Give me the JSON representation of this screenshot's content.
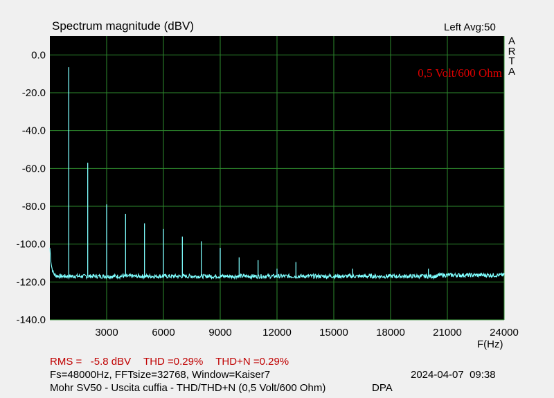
{
  "header": {
    "title": "Spectrum magnitude (dBV)",
    "channel": "Left  Avg:50",
    "vertical_brand": [
      "A",
      "R",
      "T",
      "A"
    ]
  },
  "colors": {
    "plot_background": "#000000",
    "grid": "#2e8b2e",
    "trace": "#7fffff",
    "annotation": "#e00000",
    "stats_text": "#c00000"
  },
  "chart_data": {
    "type": "line",
    "annotation": "0,5 Volt/600 Ohm",
    "xlabel": "F(Hz)",
    "xlim": [
      0,
      24000
    ],
    "ylim": [
      -140,
      10
    ],
    "x_ticks": [
      3000,
      6000,
      9000,
      12000,
      15000,
      18000,
      21000,
      24000
    ],
    "y_ticks": [
      0,
      -20,
      -40,
      -60,
      -80,
      -100,
      -120,
      -140
    ],
    "x_tick_labels": [
      "3000",
      "6000",
      "9000",
      "12000",
      "15000",
      "18000",
      "21000",
      "24000"
    ],
    "y_tick_labels": [
      "0.0",
      "-20.0",
      "-40.0",
      "-60.0",
      "-80.0",
      "-100.0",
      "-120.0",
      "-140.0"
    ],
    "grid": true,
    "noise_floor_dbv": -117,
    "harmonics": [
      {
        "freq": 1000,
        "dbv": -6.5
      },
      {
        "freq": 2000,
        "dbv": -57
      },
      {
        "freq": 3000,
        "dbv": -79
      },
      {
        "freq": 4000,
        "dbv": -84
      },
      {
        "freq": 5000,
        "dbv": -89
      },
      {
        "freq": 6000,
        "dbv": -92
      },
      {
        "freq": 7000,
        "dbv": -96
      },
      {
        "freq": 8000,
        "dbv": -98.5
      },
      {
        "freq": 9000,
        "dbv": -102
      },
      {
        "freq": 10000,
        "dbv": -107
      },
      {
        "freq": 11000,
        "dbv": -108.5
      },
      {
        "freq": 12000,
        "dbv": -113
      },
      {
        "freq": 13000,
        "dbv": -109.5
      },
      {
        "freq": 16000,
        "dbv": -113
      },
      {
        "freq": 20000,
        "dbv": -113
      }
    ]
  },
  "footer": {
    "rms": "RMS =   -5.8 dBV",
    "thd": "THD =0.29%",
    "thdn": "THD+N =0.29%",
    "params": "Fs=48000Hz, FFTsize=32768, Window=Kaiser7",
    "datetime": "2024-04-07  09:38",
    "description": "Mohr SV50 - Uscita cuffia - THD/THD+N (0,5 Volt/600 Ohm)",
    "tag": "DPA"
  }
}
